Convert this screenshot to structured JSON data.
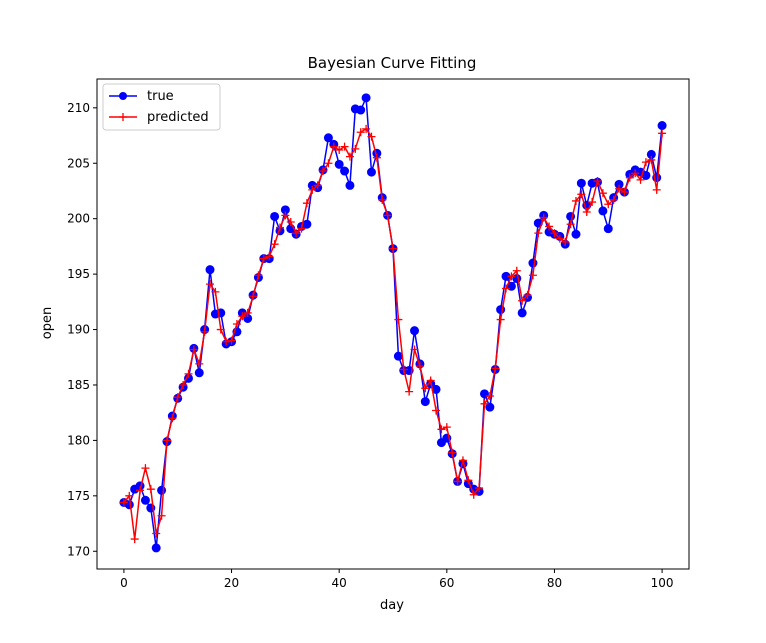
{
  "chart_data": {
    "type": "line",
    "title": "Bayesian Curve Fitting",
    "xlabel": "day",
    "ylabel": "open",
    "xlim": [
      -5,
      105
    ],
    "ylim": [
      168.4,
      212.6
    ],
    "xticks": [
      0,
      20,
      40,
      60,
      80,
      100
    ],
    "yticks": [
      170,
      175,
      180,
      185,
      190,
      195,
      200,
      205,
      210
    ],
    "grid": false,
    "legend_position": "top-left",
    "series": [
      {
        "name": "true",
        "color": "#0000ff",
        "marker": "circle",
        "x": [
          0,
          1,
          2,
          3,
          4,
          5,
          6,
          7,
          8,
          9,
          10,
          11,
          12,
          13,
          14,
          15,
          16,
          17,
          18,
          19,
          20,
          21,
          22,
          23,
          24,
          25,
          26,
          27,
          28,
          29,
          30,
          31,
          32,
          33,
          34,
          35,
          36,
          37,
          38,
          39,
          40,
          41,
          42,
          43,
          44,
          45,
          46,
          47,
          48,
          49,
          50,
          51,
          52,
          53,
          54,
          55,
          56,
          57,
          58,
          59,
          60,
          61,
          62,
          63,
          64,
          65,
          66,
          67,
          68,
          69,
          70,
          71,
          72,
          73,
          74,
          75,
          76,
          77,
          78,
          79,
          80,
          81,
          82,
          83,
          84,
          85,
          86,
          87,
          88,
          89,
          90,
          91,
          92,
          93,
          94,
          95,
          96,
          97,
          98,
          99,
          100
        ],
        "values": [
          174.4,
          174.2,
          175.6,
          175.9,
          174.6,
          173.9,
          170.3,
          175.5,
          179.9,
          182.2,
          183.8,
          184.8,
          185.6,
          188.3,
          186.1,
          190.0,
          195.4,
          191.4,
          191.5,
          188.7,
          188.9,
          189.8,
          191.5,
          191.0,
          193.1,
          194.7,
          196.4,
          196.4,
          200.2,
          198.9,
          200.8,
          199.1,
          198.6,
          199.3,
          199.5,
          203.0,
          202.8,
          204.4,
          207.3,
          206.7,
          204.9,
          204.3,
          203.0,
          209.9,
          209.8,
          210.9,
          204.2,
          205.9,
          201.9,
          200.3,
          197.3,
          187.6,
          186.3,
          186.3,
          189.9,
          186.9,
          183.5,
          185.1,
          184.6,
          179.8,
          180.2,
          178.8,
          176.3,
          177.9,
          176.1,
          175.6,
          175.4,
          184.2,
          183.0,
          186.4,
          191.8,
          194.8,
          193.9,
          194.6,
          191.5,
          192.9,
          196.0,
          199.6,
          200.3,
          198.8,
          198.6,
          198.4,
          197.7,
          200.2,
          198.6,
          203.2,
          201.2,
          203.2,
          203.3,
          200.7,
          199.1,
          201.9,
          203.1,
          202.4,
          204.0,
          204.4,
          204.2,
          203.9,
          205.8,
          203.7,
          208.4
        ]
      },
      {
        "name": "predicted",
        "color": "#ff0000",
        "marker": "plus",
        "x": [
          0,
          1,
          2,
          3,
          4,
          5,
          6,
          7,
          8,
          9,
          10,
          11,
          12,
          13,
          14,
          15,
          16,
          17,
          18,
          19,
          20,
          21,
          22,
          23,
          24,
          25,
          26,
          27,
          28,
          29,
          30,
          31,
          32,
          33,
          34,
          35,
          36,
          37,
          38,
          39,
          40,
          41,
          42,
          43,
          44,
          45,
          46,
          47,
          48,
          49,
          50,
          51,
          52,
          53,
          54,
          55,
          56,
          57,
          58,
          59,
          60,
          61,
          62,
          63,
          64,
          65,
          66,
          67,
          68,
          69,
          70,
          71,
          72,
          73,
          74,
          75,
          76,
          77,
          78,
          79,
          80,
          81,
          82,
          83,
          84,
          85,
          86,
          87,
          88,
          89,
          90,
          91,
          92,
          93,
          94,
          95,
          96,
          97,
          98,
          99,
          100
        ],
        "values": [
          174.4,
          175.0,
          171.1,
          175.5,
          177.5,
          175.6,
          171.6,
          173.2,
          180.0,
          182.0,
          183.9,
          185.0,
          186.0,
          188.2,
          186.9,
          189.8,
          194.1,
          193.4,
          190.0,
          188.9,
          189.0,
          190.5,
          191.2,
          191.5,
          193.0,
          194.9,
          196.4,
          196.6,
          197.7,
          199.2,
          200.3,
          199.7,
          198.7,
          199.1,
          201.4,
          202.6,
          203.0,
          204.3,
          205.0,
          206.5,
          206.2,
          206.5,
          205.6,
          206.3,
          207.8,
          208.1,
          207.4,
          205.5,
          201.7,
          200.3,
          197.3,
          190.9,
          186.4,
          184.4,
          188.2,
          186.7,
          184.7,
          185.4,
          182.7,
          181.0,
          181.2,
          178.9,
          176.3,
          178.2,
          176.4,
          175.1,
          175.7,
          183.3,
          184.0,
          186.5,
          190.9,
          193.7,
          194.8,
          195.3,
          192.6,
          193.1,
          194.9,
          198.7,
          200.1,
          199.3,
          198.7,
          198.2,
          197.9,
          199.5,
          201.6,
          202.2,
          200.6,
          201.5,
          203.4,
          202.3,
          201.3,
          201.7,
          202.7,
          202.4,
          203.7,
          204.1,
          203.5,
          205.1,
          205.3,
          202.6,
          207.7
        ]
      }
    ]
  }
}
